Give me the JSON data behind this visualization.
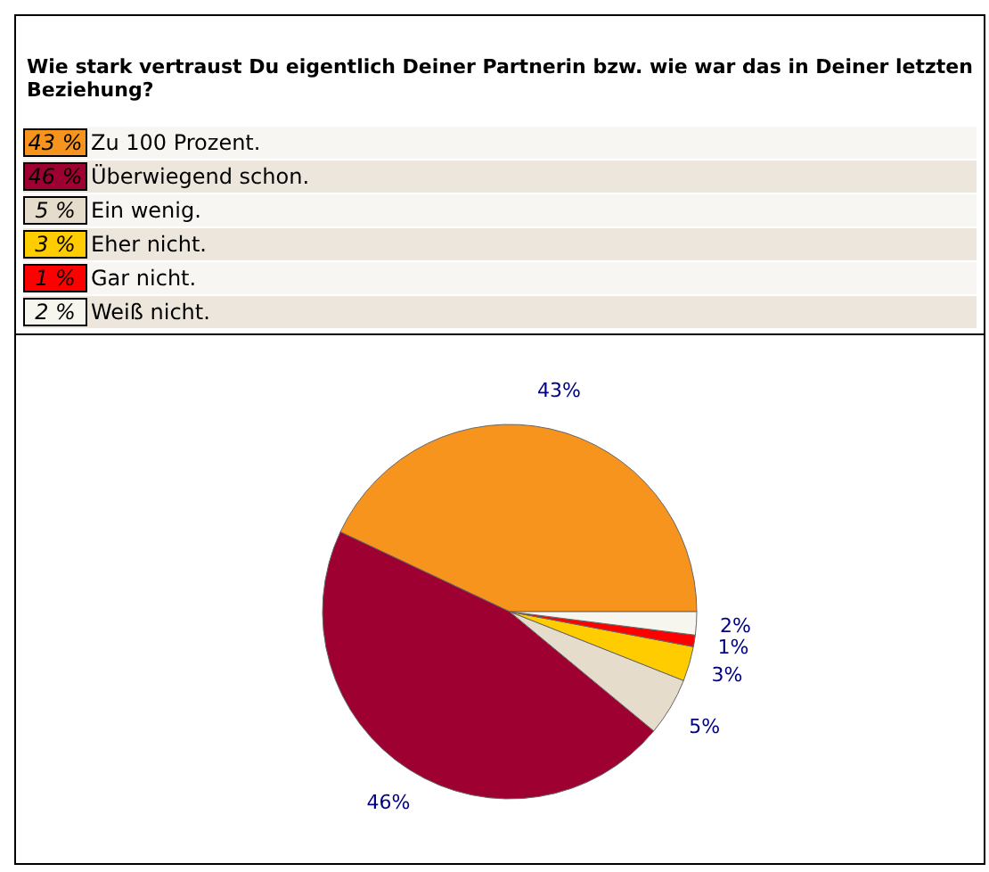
{
  "chart_data": {
    "type": "pie",
    "title": "Wie stark vertraust Du eigentlich Deiner Partnerin bzw. wie war das in Deiner letzten Beziehung?",
    "categories": [
      "Zu 100 Prozent.",
      "Überwiegend schon.",
      "Ein wenig.",
      "Eher nicht.",
      "Gar nicht.",
      "Weiß nicht."
    ],
    "values": [
      43,
      46,
      5,
      3,
      1,
      2
    ],
    "colors": [
      "#f7941d",
      "#9e0032",
      "#e6dccb",
      "#ffcc00",
      "#ff0000",
      "#f6f6ee"
    ],
    "value_labels": [
      "43%",
      "46%",
      "5%",
      "3%",
      "1%",
      "2%"
    ],
    "annotations": [
      "43 %",
      "46 %",
      "5 %",
      "3 %",
      "1 %",
      "2 %"
    ],
    "legend": "top"
  }
}
